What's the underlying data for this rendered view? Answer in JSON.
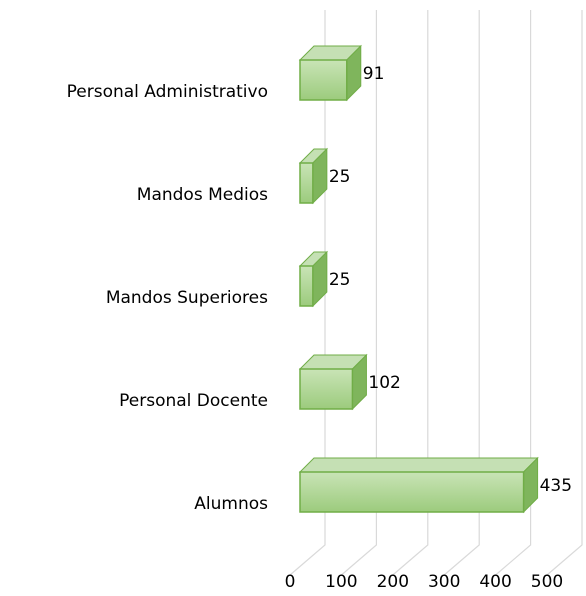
{
  "chart_data": {
    "type": "bar3d",
    "orientation": "horizontal",
    "categories": [
      "Personal Administrativo",
      "Mandos Medios",
      "Mandos Superiores",
      "Personal Docente",
      "Alumnos"
    ],
    "values": [
      91,
      25,
      25,
      102,
      435
    ],
    "color": "#a9d18e",
    "xlim": [
      0,
      500
    ],
    "xticks": [
      0,
      100,
      200,
      300,
      400,
      500
    ],
    "grid": true
  }
}
